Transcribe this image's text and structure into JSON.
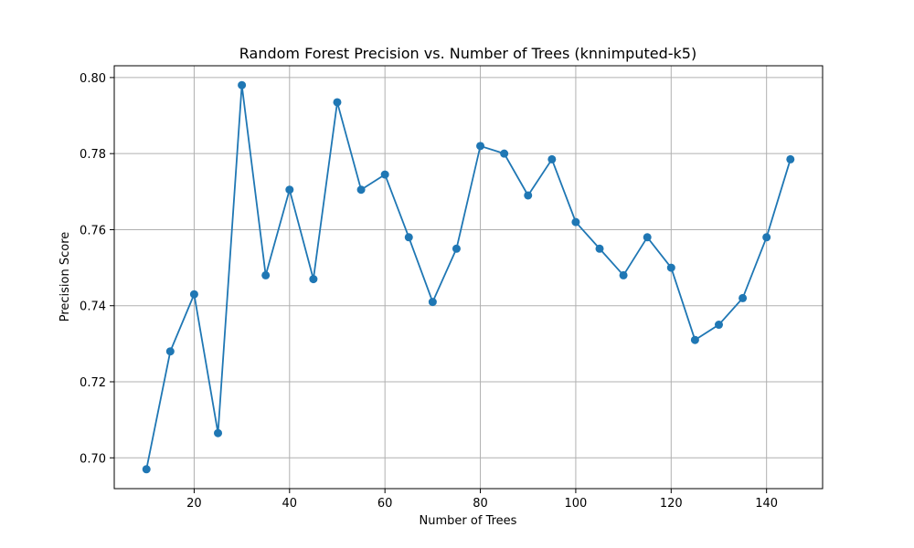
{
  "chart_data": {
    "type": "line",
    "title": "Random Forest Precision vs. Number of Trees (knnimputed-k5)",
    "xlabel": "Number of Trees",
    "ylabel": "Precision Score",
    "xlim": [
      3.25,
      151.75
    ],
    "ylim": [
      0.6919,
      0.8031
    ],
    "xticks": [
      20,
      40,
      60,
      80,
      100,
      120,
      140
    ],
    "xtick_labels": [
      "20",
      "40",
      "60",
      "80",
      "100",
      "120",
      "140"
    ],
    "yticks": [
      0.7,
      0.72,
      0.74,
      0.76,
      0.78,
      0.8
    ],
    "ytick_labels": [
      "0.70",
      "0.72",
      "0.74",
      "0.76",
      "0.78",
      "0.80"
    ],
    "grid": true,
    "marker": "circle",
    "color": "#1f77b4",
    "x": [
      10,
      15,
      20,
      25,
      30,
      35,
      40,
      45,
      50,
      55,
      60,
      65,
      70,
      75,
      80,
      85,
      90,
      95,
      100,
      105,
      110,
      115,
      120,
      125,
      130,
      135,
      140,
      145
    ],
    "series": [
      {
        "values": [
          0.697,
          0.728,
          0.743,
          0.7065,
          0.798,
          0.748,
          0.7705,
          0.747,
          0.7935,
          0.7705,
          0.7745,
          0.758,
          0.741,
          0.755,
          0.782,
          0.78,
          0.769,
          0.7785,
          0.762,
          0.755,
          0.748,
          0.758,
          0.75,
          0.731,
          0.735,
          0.742,
          0.758,
          0.7785
        ]
      }
    ]
  }
}
